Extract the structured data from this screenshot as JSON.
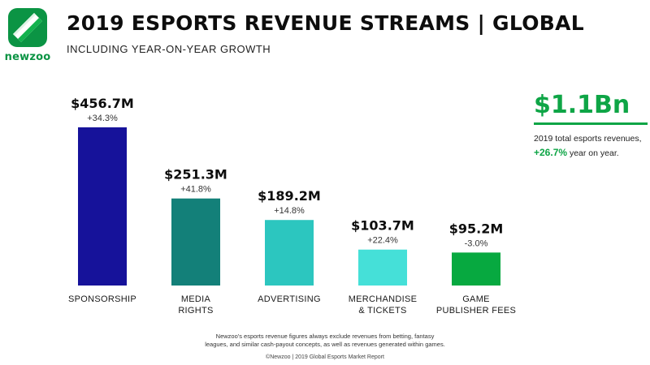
{
  "brand": {
    "name": "newzoo"
  },
  "header": {
    "title": "2019 ESPORTS REVENUE STREAMS | GLOBAL",
    "subtitle": "INCLUDING YEAR-ON-YEAR GROWTH"
  },
  "summary": {
    "value": "$1.1Bn",
    "line1": "2019 total esports revenues,",
    "growth": "+26.7%",
    "line2_suffix": " year on year."
  },
  "footnote": {
    "line1": "Newzoo's esports revenue figures always exclude revenues from betting, fantasy",
    "line2": "leagues, and similar cash-payout concepts, as well as revenues generated within games."
  },
  "copyright": "©Newzoo | 2019 Global Esports Market Report",
  "chart_data": {
    "type": "bar",
    "title": "2019 ESPORTS REVENUE STREAMS | GLOBAL",
    "subtitle": "INCLUDING YEAR-ON-YEAR GROWTH",
    "unit": "$M",
    "categories": [
      [
        "SPONSORSHIP"
      ],
      [
        "MEDIA",
        "RIGHTS"
      ],
      [
        "ADVERTISING"
      ],
      [
        "MERCHANDISE",
        "& TICKETS"
      ],
      [
        "GAME",
        "PUBLISHER FEES"
      ]
    ],
    "values": [
      456.7,
      251.3,
      189.2,
      103.7,
      95.2
    ],
    "value_labels": [
      "$456.7M",
      "$251.3M",
      "$189.2M",
      "$103.7M",
      "$95.2M"
    ],
    "growth_labels": [
      "+34.3%",
      "+41.8%",
      "+14.8%",
      "+22.4%",
      "-3.0%"
    ],
    "colors": [
      "#16129a",
      "#138079",
      "#2cc6bf",
      "#45e0d8",
      "#07a940"
    ],
    "ylim": [
      0,
      456.7
    ],
    "grid": false,
    "legend": "none"
  }
}
